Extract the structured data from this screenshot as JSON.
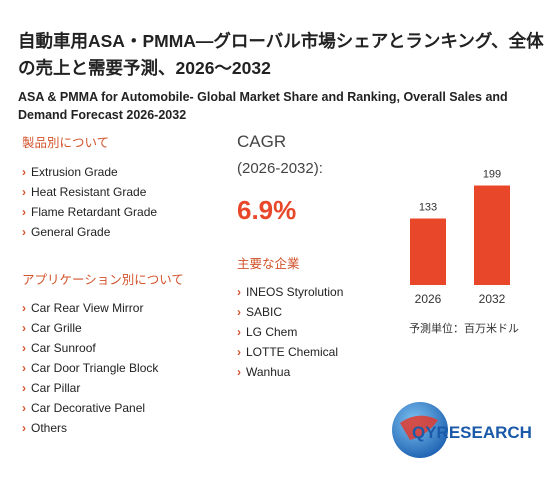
{
  "header": {
    "title": "自動車用ASA・PMMA—グローバル市場シェアとランキング、全体の売上と需要予測、2026～2032",
    "subtitle": "ASA & PMMA for Automobile- Global Market Share and Ranking, Overall Sales and Demand Forecast 2026-2032"
  },
  "product_section": {
    "heading": "製品別について",
    "items": [
      "Extrusion Grade",
      "Heat Resistant Grade",
      "Flame Retardant Grade",
      "General Grade"
    ]
  },
  "application_section": {
    "heading": "アプリケーション別について",
    "items": [
      "Car Rear View Mirror",
      "Car Grille",
      "Car Sunroof",
      "Car Door Triangle Block",
      "Car Pillar",
      "Car Decorative Panel",
      "Others"
    ]
  },
  "cagr": {
    "label": "CAGR",
    "period": "(2026-2032):",
    "value": "6.9%"
  },
  "companies": {
    "heading": "主要な企業",
    "items": [
      "INEOS Styrolution",
      "SABIC",
      "LG Chem",
      "LOTTE Chemical",
      "Wanhua"
    ]
  },
  "chart": {
    "type": "bar",
    "categories": [
      "2026",
      "2032"
    ],
    "values": [
      133,
      199
    ],
    "color": "#e8472a",
    "unit": "予測単位：百万米ドル"
  },
  "logo": {
    "text": "QYRESEARCH"
  }
}
